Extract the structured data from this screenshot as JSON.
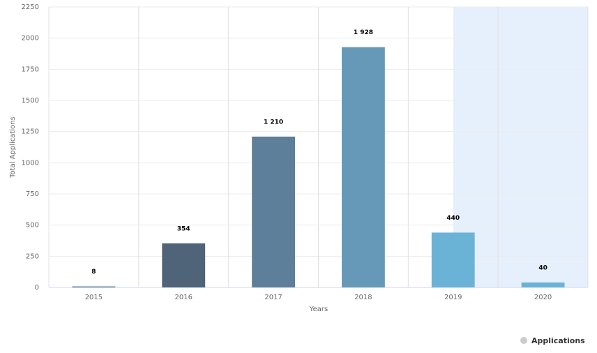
{
  "chart_data": {
    "type": "bar",
    "y_label": "Total Applications",
    "x_label": "Years",
    "categories": [
      "2015",
      "2016",
      "2017",
      "2018",
      "2019",
      "2020"
    ],
    "series": [
      {
        "name": "Applications",
        "values": [
          8,
          354,
          1210,
          1928,
          440,
          40
        ],
        "value_labels": [
          "8",
          "354",
          "1 210",
          "1 928",
          "440",
          "40"
        ],
        "colors": [
          "#5a7891",
          "#4f6479",
          "#5e7f99",
          "#6699b8",
          "#6bb3d6",
          "#6bb3d6"
        ]
      }
    ],
    "ylim": [
      0,
      2250
    ],
    "yticks": [
      0,
      250,
      500,
      750,
      1000,
      1250,
      1500,
      1750,
      2000,
      2250
    ],
    "grid": true,
    "legend": "bottom-right"
  }
}
